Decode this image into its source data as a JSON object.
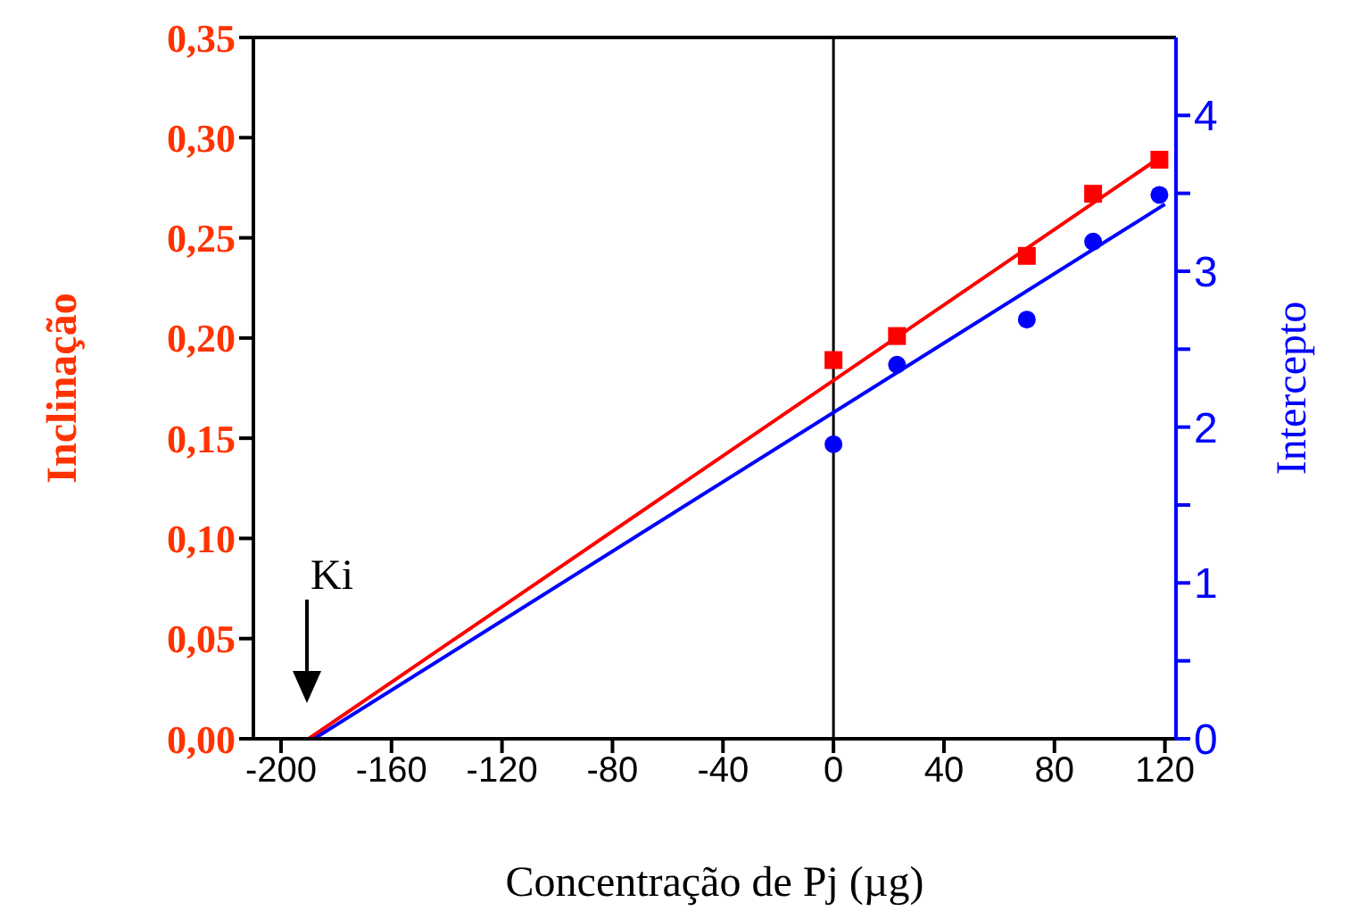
{
  "chart_data": {
    "type": "scatter",
    "xlabel": "Concentração de Pj (µg)",
    "ylabel": "Inclinação",
    "y2label": "Intercepto",
    "xlim": [
      -210,
      124
    ],
    "xticks": [
      -200,
      -160,
      -120,
      -80,
      -40,
      0,
      40,
      80,
      120
    ],
    "ylim": [
      0,
      0.35
    ],
    "yticks": [
      {
        "value": 0,
        "label": "0,00"
      },
      {
        "value": 0.05,
        "label": "0,05"
      },
      {
        "value": 0.1,
        "label": "0,10"
      },
      {
        "value": 0.15,
        "label": "0,15"
      },
      {
        "value": 0.2,
        "label": "0,20"
      },
      {
        "value": 0.25,
        "label": "0,25"
      },
      {
        "value": 0.3,
        "label": "0,30"
      },
      {
        "value": 0.35,
        "label": "0,35"
      }
    ],
    "y2lim": [
      0,
      4.5
    ],
    "y2ticks": [
      0,
      {
        "value": 0.5,
        "label": null
      },
      1,
      {
        "value": 1.5,
        "label": null
      },
      2,
      {
        "value": 2.5,
        "label": null
      },
      3,
      {
        "value": 3.5,
        "label": null
      },
      4
    ],
    "series": [
      {
        "color": "#ff0000",
        "marker": "square",
        "x": [
          0,
          23,
          70,
          94,
          118
        ],
        "values": [
          0.189,
          0.201,
          0.241,
          0.272,
          0.289
        ]
      },
      {
        "color": "#0000ff",
        "marker": "circle",
        "axis": "y2",
        "x": [
          0,
          23,
          70,
          94,
          118
        ],
        "values": [
          1.89,
          2.4,
          2.69,
          3.19,
          3.49
        ]
      },
      {
        "type": "line",
        "color": "#ff0000",
        "marker": "none",
        "x": [
          -190,
          117
        ],
        "values": [
          0,
          0.289
        ]
      },
      {
        "type": "line",
        "color": "#0000ff",
        "marker": "none",
        "axis": "y2",
        "x": [
          -188,
          120
        ],
        "values": [
          0,
          3.43
        ]
      }
    ],
    "ref_lines": [
      {
        "axis": "x",
        "value": 0,
        "color": "#000000"
      }
    ],
    "annotations": [
      "Ki"
    ],
    "grid": false,
    "legend": false
  }
}
